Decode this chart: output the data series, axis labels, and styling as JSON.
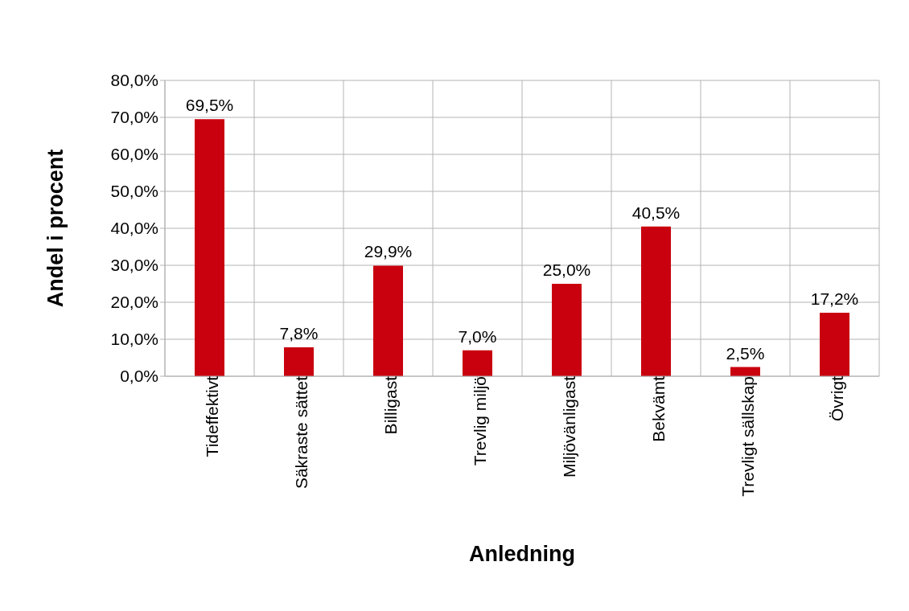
{
  "chart_data": {
    "type": "bar",
    "xlabel": "Anledning",
    "ylabel": "Andel i procent",
    "categories": [
      "Tideffektivt",
      "Säkraste sättet",
      "Billigast",
      "Trevlig miljö",
      "Miljövänligast",
      "Bekvämt",
      "Trevligt sällskap",
      "Övrigt"
    ],
    "values": [
      69.5,
      7.8,
      29.9,
      7.0,
      25.0,
      40.5,
      2.5,
      17.2
    ],
    "value_labels": [
      "69,5%",
      "7,8%",
      "29,9%",
      "7,0%",
      "25,0%",
      "40,5%",
      "2,5%",
      "17,2%"
    ],
    "color": "#c9000e",
    "ylim": [
      0,
      80
    ],
    "yticks": [
      {
        "value": 0,
        "label": "0,0%"
      },
      {
        "value": 10,
        "label": "10,0%"
      },
      {
        "value": 20,
        "label": "20,0%"
      },
      {
        "value": 30,
        "label": "30,0%"
      },
      {
        "value": 40,
        "label": "40,0%"
      },
      {
        "value": 50,
        "label": "50,0%"
      },
      {
        "value": 60,
        "label": "60,0%"
      },
      {
        "value": 70,
        "label": "70,0%"
      },
      {
        "value": 80,
        "label": "80,0%"
      }
    ],
    "grid": true
  }
}
